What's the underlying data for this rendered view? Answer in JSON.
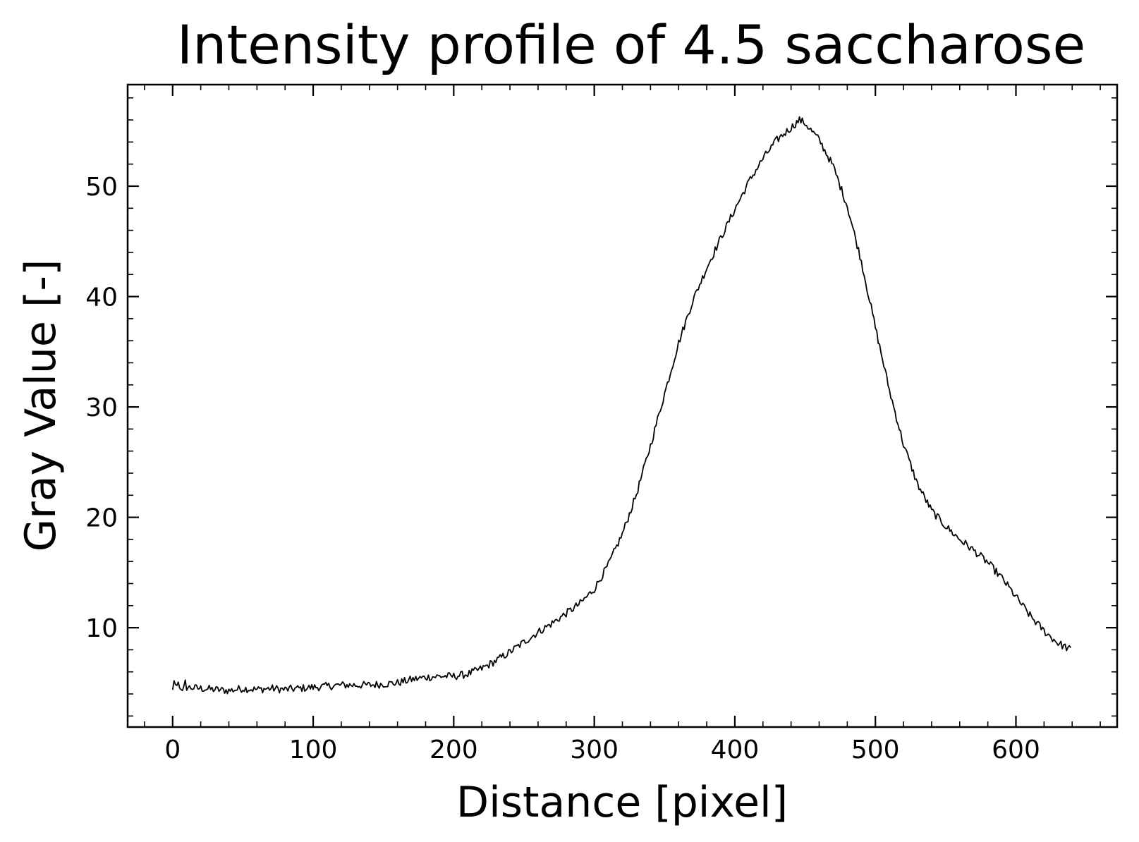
{
  "chart_data": {
    "type": "line",
    "title": "Intensity profile of 4.5 saccharose",
    "xlabel": "Distance [pixel]",
    "ylabel": "Gray Value [-]",
    "xlim": [
      -32,
      672
    ],
    "ylim": [
      1.0,
      59.2
    ],
    "xticks": [
      0,
      100,
      200,
      300,
      400,
      500,
      600
    ],
    "yticks": [
      10,
      20,
      30,
      40,
      50
    ],
    "grid": false,
    "legend": "none",
    "line_color": "#000000",
    "series": [
      {
        "x": [
          0,
          10,
          20,
          30,
          40,
          50,
          60,
          70,
          80,
          90,
          100,
          110,
          120,
          130,
          140,
          150,
          160,
          170,
          180,
          190,
          200,
          210,
          220,
          230,
          240,
          250,
          260,
          270,
          280,
          290,
          300,
          310,
          320,
          330,
          340,
          350,
          360,
          370,
          380,
          390,
          400,
          410,
          420,
          430,
          440,
          446,
          450,
          460,
          470,
          480,
          490,
          500,
          510,
          520,
          530,
          540,
          550,
          560,
          570,
          580,
          590,
          600,
          610,
          620,
          630,
          639
        ],
        "y": [
          4.5,
          4.6,
          4.5,
          4.4,
          4.3,
          4.5,
          4.4,
          4.5,
          4.4,
          4.5,
          4.6,
          4.7,
          4.8,
          4.8,
          4.8,
          4.9,
          5.0,
          5.3,
          5.5,
          5.6,
          5.6,
          5.8,
          6.3,
          7.0,
          7.8,
          8.7,
          9.6,
          10.4,
          11.3,
          12.2,
          13.5,
          15.7,
          18.5,
          22.1,
          26.5,
          31.2,
          35.8,
          39.6,
          42.6,
          45.3,
          47.9,
          50.4,
          52.5,
          54.2,
          55.3,
          56.0,
          55.7,
          54.2,
          51.8,
          48.2,
          43.2,
          37.2,
          31.5,
          26.6,
          23.0,
          20.6,
          19.2,
          18.0,
          17.0,
          15.9,
          14.5,
          12.8,
          11.1,
          9.7,
          8.6,
          8.0
        ]
      }
    ]
  }
}
